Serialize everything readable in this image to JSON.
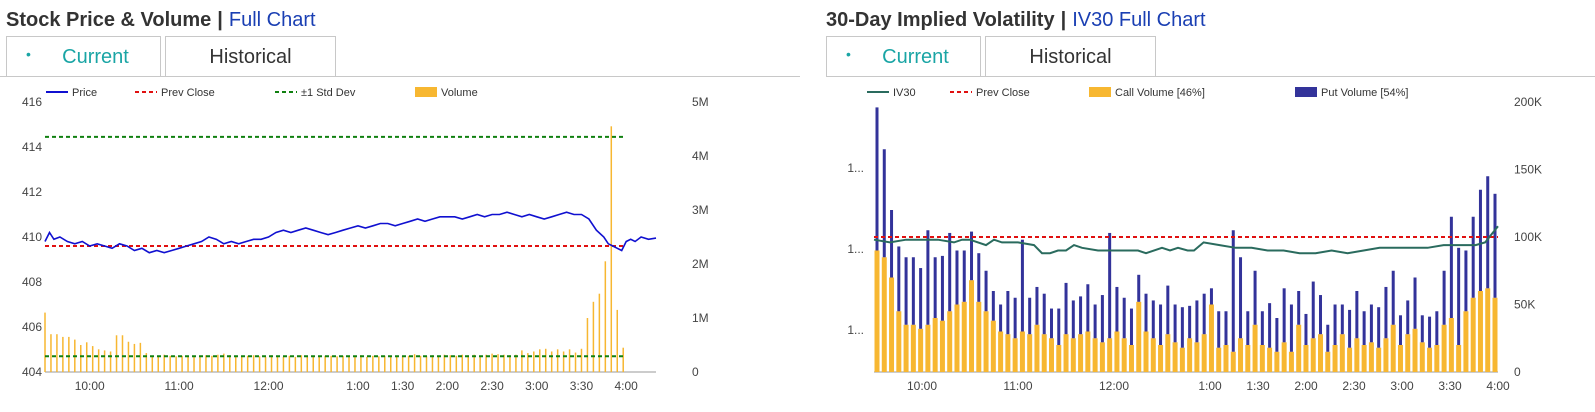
{
  "left_panel": {
    "title": "Stock Price & Volume",
    "separator": "|",
    "link": "Full Chart",
    "tabs": [
      {
        "label": "Current",
        "active": true
      },
      {
        "label": "Historical",
        "active": false
      }
    ]
  },
  "right_panel": {
    "title": "30-Day Implied Volatility",
    "separator": "|",
    "link": "IV30 Full Chart",
    "tabs": [
      {
        "label": "Current",
        "active": true
      },
      {
        "label": "Historical",
        "active": false
      }
    ]
  },
  "colors": {
    "price": "#1010d0",
    "prev_close": "#e01010",
    "std_dev": "#108010",
    "volume": "#f7b731",
    "iv30": "#2a6b5e",
    "put_volume": "#33339a",
    "tab_active": "#1aa5a5",
    "link": "#1a3fb3"
  },
  "icons": {
    "tab_bullet": "•"
  },
  "chart_data": [
    {
      "type": "line",
      "title": "Stock Price & Volume",
      "x_ticks": [
        "10:00",
        "11:00",
        "12:00",
        "1:00",
        "1:30",
        "2:00",
        "2:30",
        "3:00",
        "3:30",
        "4:00"
      ],
      "x_range_minutes": [
        0,
        410
      ],
      "x_tick_minutes": [
        30,
        90,
        150,
        210,
        240,
        270,
        300,
        330,
        360,
        390
      ],
      "y_left_ticks": [
        "416",
        "414",
        "412",
        "410",
        "408",
        "406",
        "404"
      ],
      "y_left_range": [
        404,
        416
      ],
      "y_right_ticks": [
        "5M",
        "4M",
        "3M",
        "2M",
        "1M",
        "0"
      ],
      "y_right_range": [
        0,
        5000000
      ],
      "legend": {
        "price": "Price",
        "prev_close": "Prev Close",
        "std_dev": "±1 Std Dev",
        "volume": "Volume"
      },
      "prev_close": 409.6,
      "std_dev_upper": 414.45,
      "std_dev_lower": 404.7,
      "price_series": [
        [
          0,
          409.8
        ],
        [
          3,
          410.2
        ],
        [
          6,
          409.9
        ],
        [
          10,
          410.0
        ],
        [
          15,
          409.8
        ],
        [
          20,
          409.7
        ],
        [
          25,
          409.8
        ],
        [
          30,
          409.6
        ],
        [
          35,
          409.7
        ],
        [
          40,
          409.6
        ],
        [
          45,
          409.5
        ],
        [
          50,
          409.7
        ],
        [
          55,
          409.6
        ],
        [
          60,
          409.4
        ],
        [
          65,
          409.5
        ],
        [
          70,
          409.3
        ],
        [
          75,
          409.4
        ],
        [
          80,
          409.3
        ],
        [
          85,
          409.4
        ],
        [
          90,
          409.5
        ],
        [
          95,
          409.6
        ],
        [
          100,
          409.7
        ],
        [
          105,
          409.8
        ],
        [
          110,
          410.0
        ],
        [
          115,
          409.9
        ],
        [
          120,
          409.7
        ],
        [
          125,
          409.8
        ],
        [
          130,
          409.7
        ],
        [
          135,
          409.8
        ],
        [
          140,
          409.9
        ],
        [
          145,
          409.9
        ],
        [
          150,
          410.0
        ],
        [
          155,
          410.2
        ],
        [
          160,
          410.3
        ],
        [
          165,
          410.2
        ],
        [
          170,
          410.3
        ],
        [
          175,
          410.4
        ],
        [
          180,
          410.3
        ],
        [
          185,
          410.2
        ],
        [
          190,
          410.1
        ],
        [
          195,
          410.2
        ],
        [
          200,
          410.3
        ],
        [
          205,
          410.4
        ],
        [
          210,
          410.5
        ],
        [
          215,
          410.4
        ],
        [
          220,
          410.5
        ],
        [
          225,
          410.6
        ],
        [
          230,
          410.6
        ],
        [
          235,
          410.5
        ],
        [
          240,
          410.6
        ],
        [
          245,
          410.7
        ],
        [
          250,
          410.8
        ],
        [
          255,
          410.7
        ],
        [
          260,
          410.8
        ],
        [
          265,
          410.9
        ],
        [
          270,
          410.9
        ],
        [
          275,
          410.9
        ],
        [
          280,
          410.8
        ],
        [
          285,
          410.9
        ],
        [
          290,
          411.0
        ],
        [
          295,
          410.9
        ],
        [
          300,
          411.0
        ],
        [
          305,
          411.0
        ],
        [
          310,
          411.1
        ],
        [
          315,
          411.0
        ],
        [
          320,
          410.9
        ],
        [
          325,
          411.0
        ],
        [
          330,
          410.9
        ],
        [
          335,
          410.8
        ],
        [
          340,
          410.9
        ],
        [
          345,
          411.0
        ],
        [
          350,
          411.1
        ],
        [
          355,
          411.0
        ],
        [
          360,
          411.0
        ],
        [
          365,
          410.8
        ],
        [
          370,
          410.3
        ],
        [
          375,
          410.0
        ],
        [
          378,
          409.7
        ],
        [
          381,
          409.6
        ],
        [
          384,
          409.5
        ],
        [
          387,
          409.4
        ],
        [
          390,
          409.8
        ],
        [
          393,
          409.9
        ],
        [
          396,
          409.8
        ],
        [
          400,
          410.0
        ],
        [
          405,
          409.9
        ],
        [
          410,
          409.95
        ]
      ],
      "volume_series": [
        [
          0,
          1100000
        ],
        [
          4,
          700000
        ],
        [
          8,
          700000
        ],
        [
          12,
          650000
        ],
        [
          16,
          650000
        ],
        [
          20,
          600000
        ],
        [
          24,
          500000
        ],
        [
          28,
          550000
        ],
        [
          32,
          480000
        ],
        [
          36,
          420000
        ],
        [
          40,
          400000
        ],
        [
          44,
          380000
        ],
        [
          48,
          680000
        ],
        [
          52,
          680000
        ],
        [
          56,
          560000
        ],
        [
          60,
          520000
        ],
        [
          64,
          540000
        ],
        [
          68,
          350000
        ],
        [
          72,
          300000
        ],
        [
          76,
          300000
        ],
        [
          80,
          320000
        ],
        [
          84,
          300000
        ],
        [
          88,
          290000
        ],
        [
          92,
          300000
        ],
        [
          96,
          290000
        ],
        [
          100,
          300000
        ],
        [
          104,
          300000
        ],
        [
          108,
          310000
        ],
        [
          112,
          300000
        ],
        [
          116,
          320000
        ],
        [
          120,
          340000
        ],
        [
          124,
          310000
        ],
        [
          128,
          300000
        ],
        [
          132,
          300000
        ],
        [
          136,
          300000
        ],
        [
          140,
          310000
        ],
        [
          144,
          290000
        ],
        [
          148,
          280000
        ],
        [
          152,
          310000
        ],
        [
          156,
          300000
        ],
        [
          160,
          280000
        ],
        [
          164,
          300000
        ],
        [
          168,
          280000
        ],
        [
          172,
          310000
        ],
        [
          176,
          280000
        ],
        [
          180,
          300000
        ],
        [
          184,
          290000
        ],
        [
          188,
          300000
        ],
        [
          192,
          300000
        ],
        [
          196,
          290000
        ],
        [
          200,
          300000
        ],
        [
          204,
          280000
        ],
        [
          208,
          300000
        ],
        [
          212,
          310000
        ],
        [
          216,
          280000
        ],
        [
          220,
          300000
        ],
        [
          224,
          290000
        ],
        [
          228,
          300000
        ],
        [
          232,
          290000
        ],
        [
          236,
          300000
        ],
        [
          240,
          300000
        ],
        [
          244,
          300000
        ],
        [
          248,
          330000
        ],
        [
          252,
          300000
        ],
        [
          256,
          290000
        ],
        [
          260,
          310000
        ],
        [
          264,
          300000
        ],
        [
          268,
          320000
        ],
        [
          272,
          310000
        ],
        [
          276,
          300000
        ],
        [
          280,
          320000
        ],
        [
          284,
          310000
        ],
        [
          288,
          320000
        ],
        [
          292,
          300000
        ],
        [
          296,
          320000
        ],
        [
          300,
          340000
        ],
        [
          304,
          330000
        ],
        [
          308,
          320000
        ],
        [
          312,
          310000
        ],
        [
          316,
          320000
        ],
        [
          320,
          400000
        ],
        [
          324,
          350000
        ],
        [
          328,
          380000
        ],
        [
          332,
          420000
        ],
        [
          336,
          430000
        ],
        [
          340,
          380000
        ],
        [
          344,
          420000
        ],
        [
          348,
          380000
        ],
        [
          352,
          420000
        ],
        [
          356,
          360000
        ],
        [
          360,
          430000
        ],
        [
          364,
          1000000
        ],
        [
          368,
          1300000
        ],
        [
          372,
          1450000
        ],
        [
          376,
          2050000
        ],
        [
          380,
          4550000
        ],
        [
          384,
          1150000
        ],
        [
          388,
          450000
        ]
      ]
    },
    {
      "type": "bar",
      "title": "30-Day Implied Volatility",
      "x_ticks": [
        "10:00",
        "11:00",
        "12:00",
        "1:00",
        "1:30",
        "2:00",
        "2:30",
        "3:00",
        "3:30",
        "4:00"
      ],
      "x_range_minutes": [
        0,
        390
      ],
      "x_tick_minutes": [
        30,
        90,
        150,
        210,
        240,
        270,
        300,
        330,
        360,
        390
      ],
      "y_left_ticks": [
        "1...",
        "1...",
        "1..."
      ],
      "y_right_ticks": [
        "200K",
        "150K",
        "100K",
        "50K",
        "0"
      ],
      "y_right_range": [
        0,
        200000
      ],
      "legend": {
        "iv30": "IV30",
        "prev_close": "Prev Close",
        "call_volume": "Call Volume [46%]",
        "put_volume": "Put Volume [54%]"
      },
      "prev_close_iv_ratio": 0.5,
      "iv30_series_ratio": [
        [
          0,
          0.49
        ],
        [
          10,
          0.48
        ],
        [
          20,
          0.49
        ],
        [
          30,
          0.49
        ],
        [
          40,
          0.49
        ],
        [
          50,
          0.48
        ],
        [
          55,
          0.49
        ],
        [
          60,
          0.49
        ],
        [
          70,
          0.47
        ],
        [
          75,
          0.49
        ],
        [
          80,
          0.48
        ],
        [
          90,
          0.48
        ],
        [
          100,
          0.47
        ],
        [
          105,
          0.44
        ],
        [
          110,
          0.44
        ],
        [
          115,
          0.45
        ],
        [
          120,
          0.45
        ],
        [
          125,
          0.47
        ],
        [
          130,
          0.46
        ],
        [
          140,
          0.45
        ],
        [
          150,
          0.45
        ],
        [
          160,
          0.45
        ],
        [
          165,
          0.45
        ],
        [
          170,
          0.44
        ],
        [
          180,
          0.46
        ],
        [
          185,
          0.45
        ],
        [
          190,
          0.46
        ],
        [
          196,
          0.45
        ],
        [
          200,
          0.45
        ],
        [
          206,
          0.48
        ],
        [
          216,
          0.47
        ],
        [
          226,
          0.46
        ],
        [
          236,
          0.46
        ],
        [
          246,
          0.45
        ],
        [
          256,
          0.45
        ],
        [
          266,
          0.44
        ],
        [
          276,
          0.44
        ],
        [
          286,
          0.45
        ],
        [
          296,
          0.44
        ],
        [
          306,
          0.45
        ],
        [
          316,
          0.46
        ],
        [
          326,
          0.46
        ],
        [
          336,
          0.46
        ],
        [
          346,
          0.46
        ],
        [
          356,
          0.47
        ],
        [
          366,
          0.47
        ],
        [
          376,
          0.47
        ],
        [
          382,
          0.48
        ],
        [
          386,
          0.51
        ],
        [
          390,
          0.54
        ]
      ],
      "call_volume": [
        90000,
        85000,
        70000,
        45000,
        35000,
        35000,
        32000,
        35000,
        40000,
        38000,
        45000,
        50000,
        52000,
        68000,
        52000,
        45000,
        38000,
        30000,
        28000,
        25000,
        30000,
        28000,
        35000,
        28000,
        25000,
        20000,
        28000,
        25000,
        28000,
        30000,
        25000,
        22000,
        25000,
        30000,
        25000,
        20000,
        52000,
        30000,
        25000,
        20000,
        28000,
        22000,
        18000,
        25000,
        22000,
        28000,
        50000,
        18000,
        20000,
        15000,
        25000,
        20000,
        35000,
        20000,
        18000,
        15000,
        22000,
        15000,
        35000,
        20000,
        25000,
        28000,
        15000,
        20000,
        28000,
        18000,
        25000,
        20000,
        22000,
        18000,
        25000,
        35000,
        20000,
        28000,
        32000,
        22000,
        18000,
        20000,
        35000,
        40000,
        20000,
        45000,
        55000,
        60000,
        62000,
        55000
      ],
      "put_volume": [
        106000,
        80000,
        50000,
        48000,
        50000,
        50000,
        45000,
        70000,
        45000,
        48000,
        58000,
        40000,
        38000,
        36000,
        36000,
        30000,
        22000,
        20000,
        32000,
        30000,
        68000,
        27000,
        28000,
        30000,
        22000,
        27000,
        38000,
        28000,
        28000,
        35000,
        25000,
        35000,
        78000,
        33000,
        30000,
        27000,
        20000,
        28000,
        28000,
        30000,
        36000,
        28000,
        30000,
        24000,
        31000,
        30000,
        12000,
        27000,
        25000,
        90000,
        60000,
        25000,
        40000,
        25000,
        33000,
        25000,
        40000,
        35000,
        25000,
        23000,
        42000,
        29000,
        20000,
        30000,
        22000,
        28000,
        35000,
        25000,
        28000,
        30000,
        38000,
        40000,
        22000,
        25000,
        38000,
        20000,
        23000,
        25000,
        40000,
        75000,
        72000,
        45000,
        60000,
        75000,
        83000,
        77000
      ]
    }
  ]
}
